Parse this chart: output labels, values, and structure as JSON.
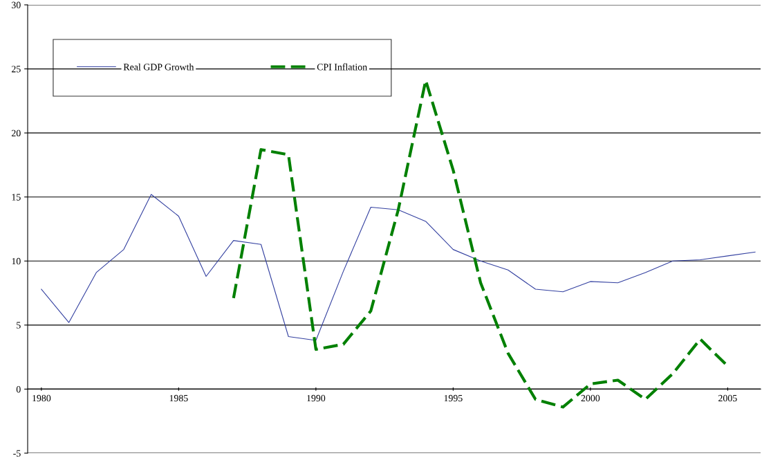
{
  "chart_data": {
    "type": "line",
    "x": [
      1980,
      1981,
      1982,
      1983,
      1984,
      1985,
      1986,
      1987,
      1988,
      1989,
      1990,
      1991,
      1992,
      1993,
      1994,
      1995,
      1996,
      1997,
      1998,
      1999,
      2000,
      2001,
      2002,
      2003,
      2004,
      2005,
      2006
    ],
    "series": [
      {
        "name": "Real GDP Growth",
        "color": "#3340a0",
        "line_style": "solid",
        "values": [
          7.8,
          5.2,
          9.1,
          10.9,
          15.2,
          13.5,
          8.8,
          11.6,
          11.3,
          4.1,
          3.8,
          9.2,
          14.2,
          14.0,
          13.1,
          10.9,
          10.0,
          9.3,
          7.8,
          7.6,
          8.4,
          8.3,
          9.1,
          10.0,
          10.1,
          10.4,
          10.7
        ]
      },
      {
        "name": "CPI Inflation",
        "color": "#008000",
        "line_style": "dashed",
        "values": [
          null,
          null,
          null,
          null,
          null,
          null,
          null,
          7.1,
          18.7,
          18.3,
          3.1,
          3.5,
          6.1,
          14.0,
          24.1,
          17.1,
          8.3,
          2.8,
          -0.8,
          -1.4,
          0.4,
          0.7,
          -0.8,
          1.2,
          3.9,
          1.8,
          null
        ]
      }
    ],
    "xlim": [
      1979.5,
      2006.2
    ],
    "xticks": [
      1980,
      1985,
      1990,
      1995,
      2000,
      2005
    ],
    "ylim": [
      -5,
      30
    ],
    "yticks": [
      -5,
      0,
      5,
      10,
      15,
      20,
      25,
      30
    ],
    "grid": "y",
    "legend": "top left",
    "marker": "none"
  }
}
